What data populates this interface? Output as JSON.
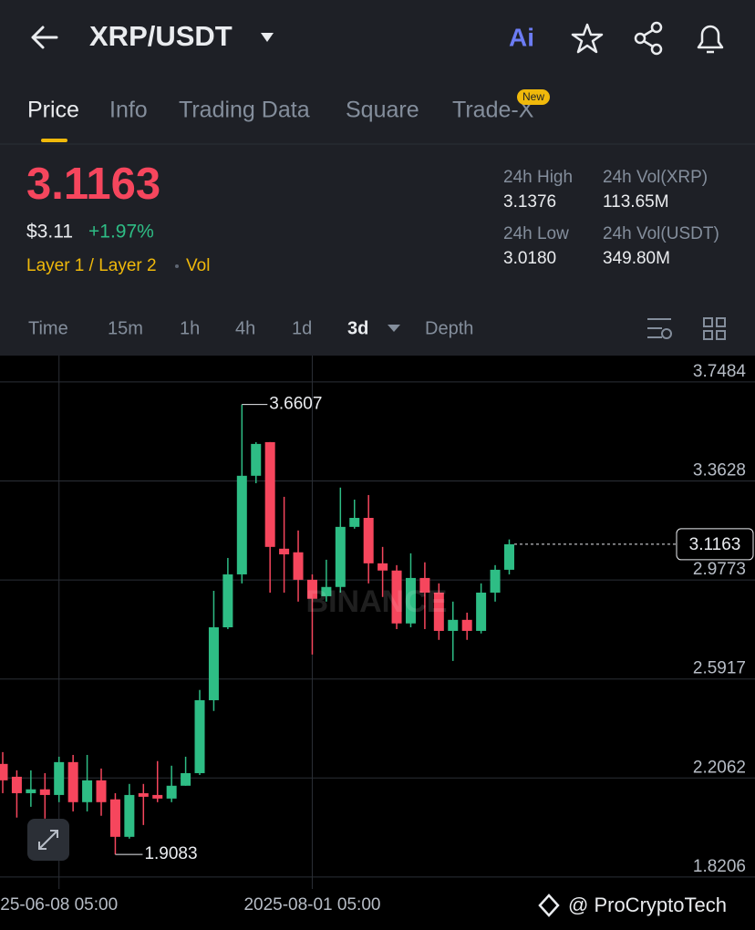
{
  "header": {
    "pair": "XRP/USDT",
    "ai": "Ai"
  },
  "tabs": [
    "Price",
    "Info",
    "Trading Data",
    "Square",
    "Trade-X"
  ],
  "new_badge": "New",
  "price": {
    "last": "3.1163",
    "usd": "$3.11",
    "change": "+1.97%",
    "tags": [
      "Layer 1 / Layer 2",
      "Vol"
    ]
  },
  "stats": [
    {
      "label": "24h High",
      "value": "3.1376"
    },
    {
      "label": "24h Vol(XRP)",
      "value": "113.65M"
    },
    {
      "label": "24h Low",
      "value": "3.0180"
    },
    {
      "label": "24h Vol(USDT)",
      "value": "349.80M"
    }
  ],
  "intervals": [
    "Time",
    "15m",
    "1h",
    "4h",
    "1d",
    "3d",
    "Depth"
  ],
  "watermark": "BINANCE",
  "footer": "@ ProCryptoTech",
  "chart_data": {
    "type": "candlestick",
    "categories": [
      null,
      null,
      null,
      null,
      "25-06-08 05:00",
      null,
      null,
      null,
      null,
      null,
      null,
      null,
      null,
      null,
      null,
      null,
      null,
      null,
      null,
      null,
      null,
      null,
      "2025-08-01 05:00",
      null,
      null,
      null,
      null,
      null,
      null,
      null,
      null,
      null,
      null,
      null,
      null,
      null,
      null
    ],
    "open": [
      2.261,
      2.211,
      2.147,
      2.162,
      2.14,
      2.268,
      2.112,
      2.197,
      2.123,
      1.977,
      2.147,
      2.14,
      2.126,
      2.176,
      2.225,
      2.509,
      2.793,
      2.999,
      3.383,
      3.514,
      3.099,
      3.085,
      2.978,
      2.914,
      2.95,
      3.184,
      3.219,
      3.042,
      3.014,
      2.808,
      2.985,
      2.928,
      2.779,
      2.822,
      2.779,
      2.928,
      3.017
    ],
    "close": [
      2.197,
      2.147,
      2.162,
      2.14,
      2.268,
      2.112,
      2.197,
      2.112,
      1.977,
      2.14,
      2.133,
      2.126,
      2.176,
      2.225,
      2.509,
      2.793,
      2.999,
      3.383,
      3.507,
      3.106,
      3.077,
      2.978,
      2.904,
      2.95,
      3.184,
      3.219,
      3.042,
      3.014,
      2.808,
      2.985,
      2.928,
      2.779,
      2.822,
      2.779,
      2.928,
      3.017,
      3.1163
    ],
    "high": [
      2.307,
      2.236,
      2.236,
      2.225,
      2.289,
      2.296,
      2.296,
      2.243,
      2.147,
      2.183,
      2.183,
      2.272,
      2.254,
      2.289,
      2.549,
      2.935,
      3.063,
      3.6607,
      3.514,
      3.514,
      3.301,
      3.17,
      2.999,
      3.056,
      3.337,
      3.29,
      3.308,
      3.106,
      3.035,
      3.081,
      3.046,
      2.964,
      2.893,
      2.85,
      2.964,
      3.035,
      3.135
    ],
    "low": [
      2.147,
      2.052,
      2.094,
      2.048,
      2.112,
      2.076,
      2.076,
      2.059,
      1.9083,
      1.97,
      2.023,
      2.112,
      2.112,
      2.176,
      2.218,
      2.467,
      2.786,
      2.964,
      3.354,
      2.928,
      2.928,
      2.893,
      2.687,
      2.893,
      2.928,
      3.177,
      2.964,
      2.911,
      2.786,
      2.793,
      2.786,
      2.744,
      2.662,
      2.744,
      2.769,
      2.893,
      2.999
    ],
    "up_color": "#2ebd85",
    "down_color": "#f6465d",
    "ylim": [
      1.774,
      3.851
    ],
    "yticks": [
      1.8206,
      2.2062,
      2.5917,
      2.9773,
      3.3628,
      3.7484
    ],
    "max_label": 3.6607,
    "min_label": 1.9083,
    "last_price": 3.1163,
    "grid": true
  }
}
